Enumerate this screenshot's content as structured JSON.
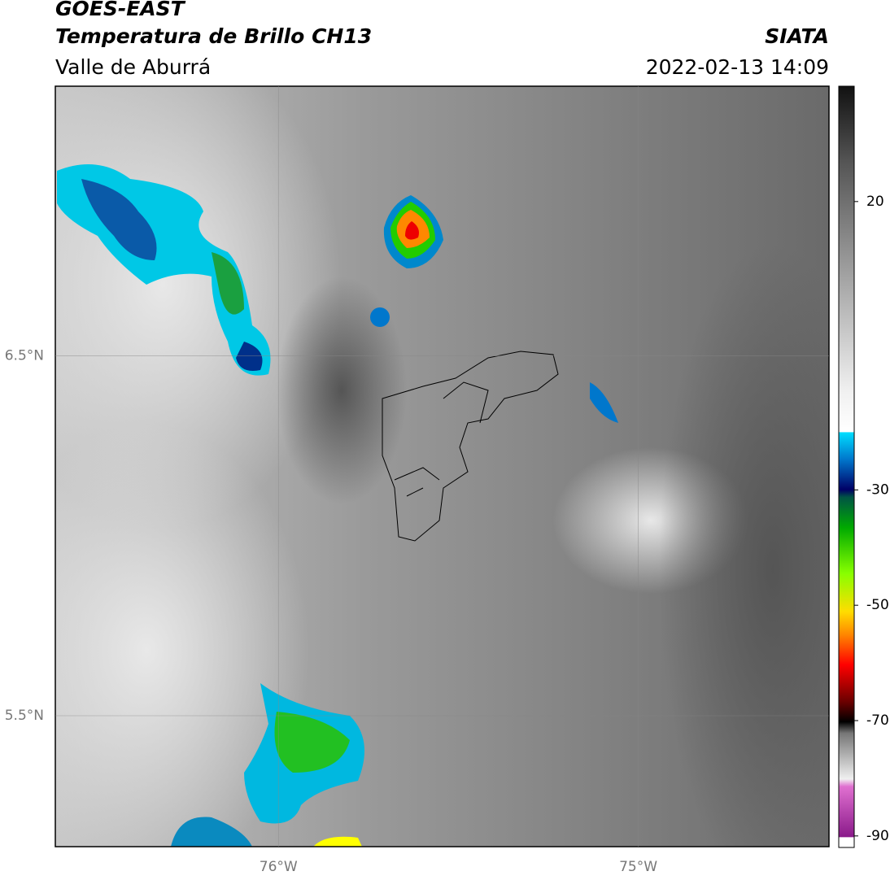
{
  "header": {
    "title": "GOES-EAST",
    "subtitle": "Temperatura de Brillo CH13",
    "region": "Valle de Aburrá",
    "agency": "SIATA",
    "datetime": "2022-02-13 14:09"
  },
  "map": {
    "lat_lim": [
      5.136,
      7.25
    ],
    "lon_lim": [
      -76.62,
      -74.47
    ],
    "lat_ticks": [
      {
        "value": 6.5,
        "label": "6.5°N"
      },
      {
        "value": 5.5,
        "label": "5.5°N"
      }
    ],
    "lon_ticks": [
      {
        "value": -76,
        "label": "76°W"
      },
      {
        "value": -75,
        "label": "75°W"
      }
    ]
  },
  "colorbar": {
    "lim": [
      -92,
      40
    ],
    "ticks": [
      20,
      -30,
      -50,
      -70,
      -90
    ]
  }
}
